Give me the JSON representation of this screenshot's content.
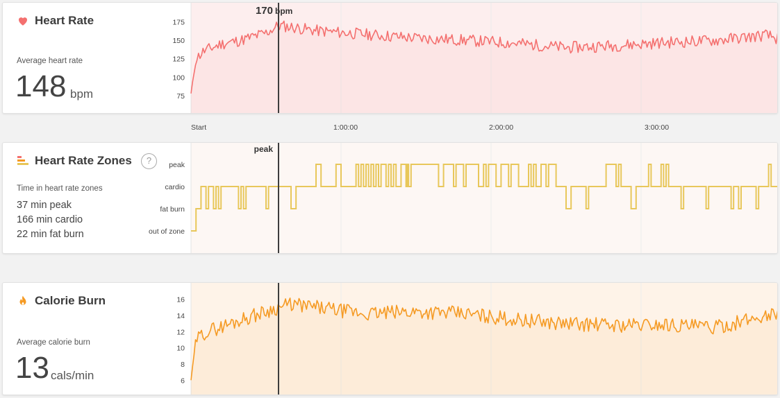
{
  "heart_rate": {
    "title": "Heart Rate",
    "avg_label": "Average heart rate",
    "avg_value": "148",
    "avg_unit": "bpm",
    "marker_value": "170",
    "marker_unit": "bpm",
    "icon": "heart-icon",
    "color": "#f4706f",
    "chart_data": {
      "type": "area",
      "ylabel": "",
      "ylim": [
        60,
        182
      ],
      "yticks": [
        75,
        100,
        125,
        150,
        175
      ],
      "x_range_min": [
        0,
        235
      ],
      "seed": 11,
      "profile": [
        [
          0,
          78
        ],
        [
          2,
          125
        ],
        [
          5,
          135
        ],
        [
          12,
          145
        ],
        [
          20,
          150
        ],
        [
          30,
          160
        ],
        [
          35,
          170
        ],
        [
          40,
          168
        ],
        [
          50,
          163
        ],
        [
          70,
          158
        ],
        [
          90,
          153
        ],
        [
          110,
          150
        ],
        [
          130,
          146
        ],
        [
          150,
          140
        ],
        [
          170,
          143
        ],
        [
          190,
          147
        ],
        [
          210,
          150
        ],
        [
          230,
          157
        ],
        [
          235,
          152
        ]
      ],
      "noise": 8
    }
  },
  "zones": {
    "title": "Heart Rate Zones",
    "help": "?",
    "summary_label": "Time in heart rate zones",
    "lines": [
      "37 min peak",
      "166 min cardio",
      "22 min fat burn"
    ],
    "marker_label": "peak",
    "icon": "zones-icon",
    "color": "#e8c75a",
    "chart_data": {
      "type": "line",
      "categories": [
        "out of zone",
        "fat burn",
        "cardio",
        "peak"
      ],
      "segments": [
        [
          0,
          0
        ],
        [
          2,
          1
        ],
        [
          4,
          2
        ],
        [
          6,
          1
        ],
        [
          7,
          2
        ],
        [
          9,
          1
        ],
        [
          10,
          2
        ],
        [
          11,
          1
        ],
        [
          12,
          2
        ],
        [
          19,
          1
        ],
        [
          20,
          2
        ],
        [
          21,
          1
        ],
        [
          22,
          2
        ],
        [
          30,
          1
        ],
        [
          31,
          2
        ],
        [
          40,
          1
        ],
        [
          42,
          2
        ],
        [
          50,
          3
        ],
        [
          52,
          2
        ],
        [
          58,
          3
        ],
        [
          60,
          2
        ],
        [
          66,
          3
        ],
        [
          67,
          2
        ],
        [
          68,
          3
        ],
        [
          69,
          2
        ],
        [
          70,
          3
        ],
        [
          71,
          2
        ],
        [
          72,
          3
        ],
        [
          73,
          2
        ],
        [
          74,
          3
        ],
        [
          75,
          2
        ],
        [
          76,
          3
        ],
        [
          78,
          2
        ],
        [
          79,
          3
        ],
        [
          80,
          2
        ],
        [
          81,
          3
        ],
        [
          82,
          2
        ],
        [
          84,
          3
        ],
        [
          86,
          2
        ],
        [
          86.5,
          3
        ],
        [
          87,
          2
        ],
        [
          88,
          3
        ],
        [
          99,
          2
        ],
        [
          101,
          3
        ],
        [
          105,
          2
        ],
        [
          106,
          3
        ],
        [
          109,
          2
        ],
        [
          110,
          3
        ],
        [
          115,
          2
        ],
        [
          117,
          3
        ],
        [
          118,
          2
        ],
        [
          119,
          3
        ],
        [
          122,
          2
        ],
        [
          124,
          3
        ],
        [
          127,
          2
        ],
        [
          128,
          3
        ],
        [
          131,
          2
        ],
        [
          135,
          3
        ],
        [
          136,
          2
        ],
        [
          137,
          3
        ],
        [
          138,
          2
        ],
        [
          140,
          3
        ],
        [
          142,
          2
        ],
        [
          143,
          3
        ],
        [
          146,
          2
        ],
        [
          150,
          1
        ],
        [
          152,
          2
        ],
        [
          158,
          1
        ],
        [
          159,
          2
        ],
        [
          166,
          3
        ],
        [
          170,
          2
        ],
        [
          171,
          3
        ],
        [
          172,
          2
        ],
        [
          176,
          1
        ],
        [
          178,
          2
        ],
        [
          183,
          3
        ],
        [
          184,
          2
        ],
        [
          188,
          3
        ],
        [
          189,
          2
        ],
        [
          190,
          3
        ],
        [
          191,
          2
        ],
        [
          196,
          1
        ],
        [
          197,
          2
        ],
        [
          206,
          1
        ],
        [
          207,
          2
        ],
        [
          216,
          1
        ],
        [
          217,
          2
        ],
        [
          219,
          1
        ],
        [
          220,
          2
        ],
        [
          226,
          1
        ],
        [
          227,
          2
        ],
        [
          231,
          3
        ],
        [
          232,
          2
        ],
        [
          235,
          2
        ]
      ]
    }
  },
  "calories": {
    "title": "Calorie Burn",
    "avg_label": "Average calorie burn",
    "avg_value": "13",
    "avg_unit": "cals/min",
    "icon": "flame-icon",
    "color": "#f59a23",
    "chart_data": {
      "type": "area",
      "ylabel": "",
      "ylim": [
        5,
        17
      ],
      "yticks": [
        6,
        8,
        10,
        12,
        14,
        16
      ],
      "seed": 29,
      "profile": [
        [
          0,
          6
        ],
        [
          2,
          11
        ],
        [
          6,
          12
        ],
        [
          12,
          12.6
        ],
        [
          20,
          13.5
        ],
        [
          30,
          14.5
        ],
        [
          35,
          15
        ],
        [
          40,
          15.4
        ],
        [
          50,
          15
        ],
        [
          70,
          14.2
        ],
        [
          90,
          14.5
        ],
        [
          110,
          14.2
        ],
        [
          130,
          13.5
        ],
        [
          150,
          13
        ],
        [
          170,
          12.8
        ],
        [
          190,
          12.9
        ],
        [
          210,
          12.5
        ],
        [
          230,
          14
        ],
        [
          235,
          14.3
        ]
      ],
      "noise": 0.9
    }
  },
  "x_axis": {
    "labels": [
      "Start",
      "1:00:00",
      "2:00:00",
      "3:00:00"
    ]
  }
}
